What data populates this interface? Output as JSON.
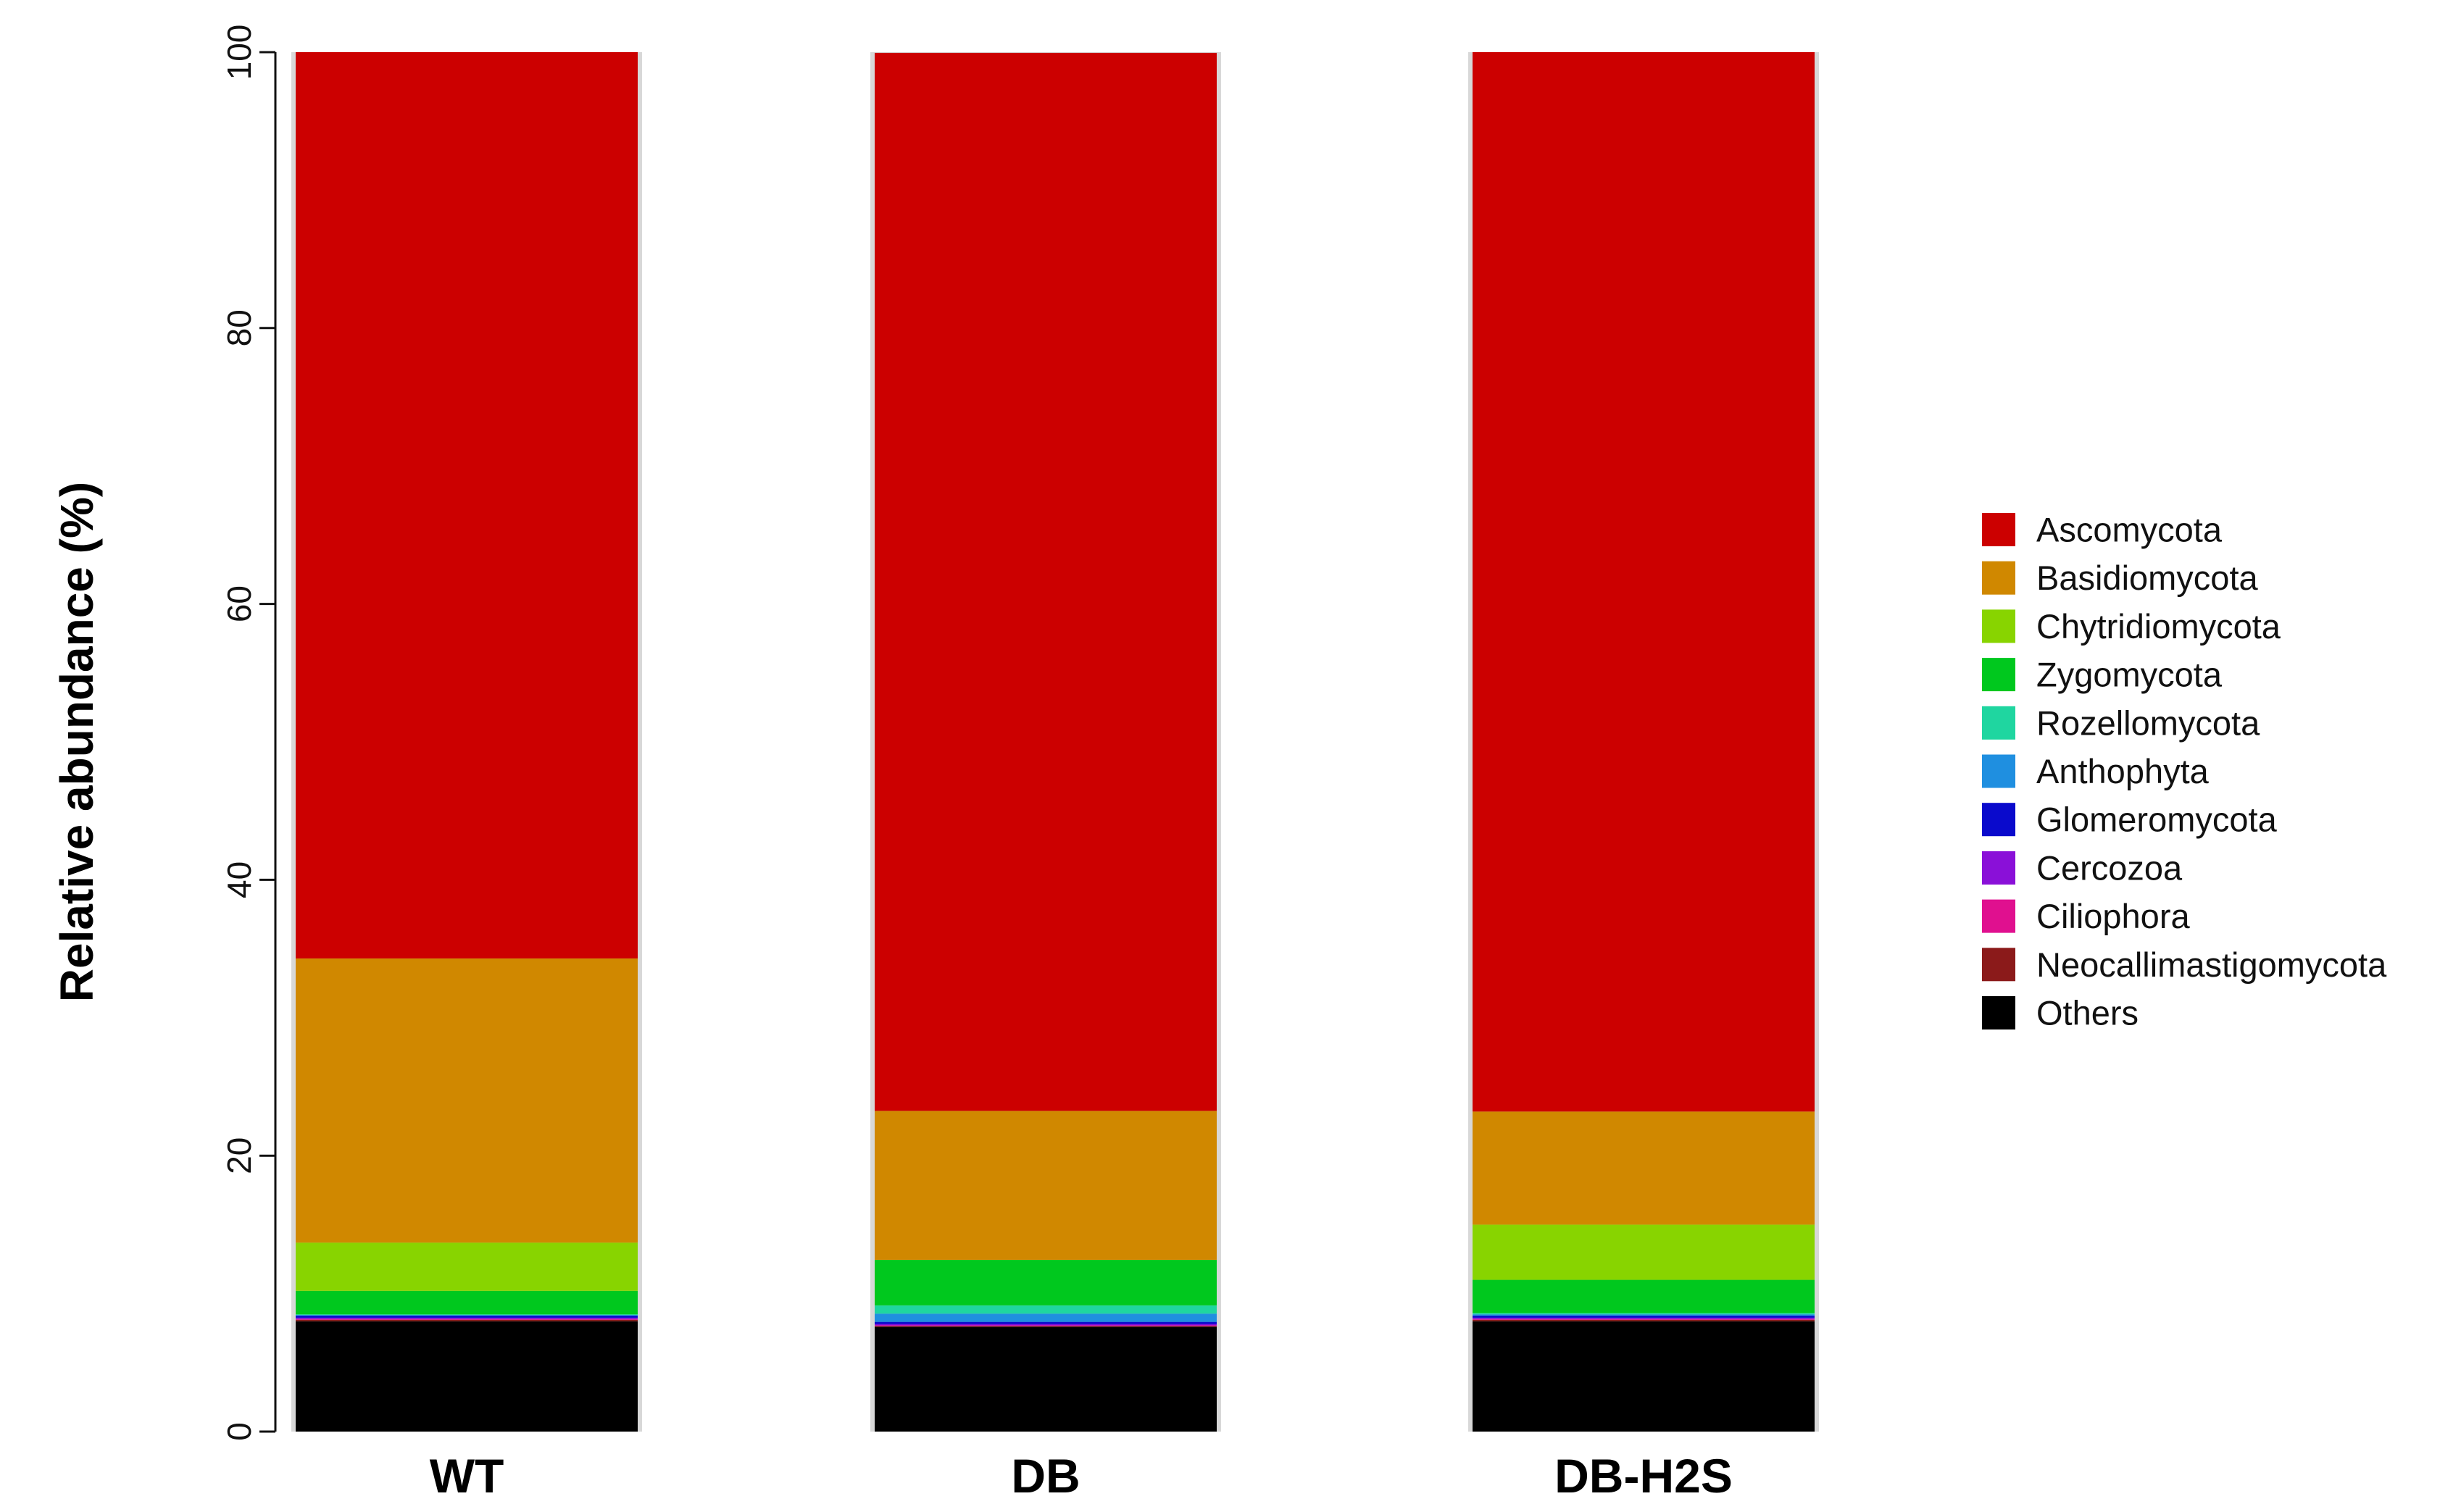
{
  "chart_data": {
    "type": "bar",
    "stacked": true,
    "ylabel": "Relative abundance (%)",
    "xlabel": "",
    "ylim": [
      0,
      100
    ],
    "yticks": [
      0,
      20,
      40,
      60,
      80,
      100
    ],
    "categories": [
      "WT",
      "DB",
      "DB-H2S"
    ],
    "legend_position": "right",
    "grid": false,
    "series": [
      {
        "name": "Others",
        "color": "#000000",
        "values": [
          8.0,
          7.6,
          8.0
        ]
      },
      {
        "name": "Neocallimastigomycota",
        "color": "#8B1A1A",
        "values": [
          0.1,
          0.05,
          0.1
        ]
      },
      {
        "name": "Ciliophora",
        "color": "#E0108F",
        "values": [
          0.05,
          0.05,
          0.05
        ]
      },
      {
        "name": "Cercozoa",
        "color": "#8A10D8",
        "values": [
          0.1,
          0.1,
          0.1
        ]
      },
      {
        "name": "Glomeromycota",
        "color": "#0A0ACC",
        "values": [
          0.15,
          0.15,
          0.15
        ]
      },
      {
        "name": "Anthophyta",
        "color": "#1F8FE0",
        "values": [
          0.05,
          0.6,
          0.1
        ]
      },
      {
        "name": "Rozellomycota",
        "color": "#1FD6A0",
        "values": [
          0.05,
          0.6,
          0.1
        ]
      },
      {
        "name": "Zygomycota",
        "color": "#00C81E",
        "values": [
          1.7,
          3.3,
          2.4
        ]
      },
      {
        "name": "Chytridiomycota",
        "color": "#88D400",
        "values": [
          3.5,
          0.0,
          4.0
        ]
      },
      {
        "name": "Basidiomycota",
        "color": "#D08800",
        "values": [
          20.6,
          10.8,
          8.2
        ]
      },
      {
        "name": "Ascomycota",
        "color": "#CC0000",
        "values": [
          65.7,
          76.7,
          76.8
        ]
      }
    ],
    "legend_order": [
      "Ascomycota",
      "Basidiomycota",
      "Chytridiomycota",
      "Zygomycota",
      "Rozellomycota",
      "Anthophyta",
      "Glomeromycota",
      "Cercozoa",
      "Ciliophora",
      "Neocallimastigomycota",
      "Others"
    ]
  }
}
